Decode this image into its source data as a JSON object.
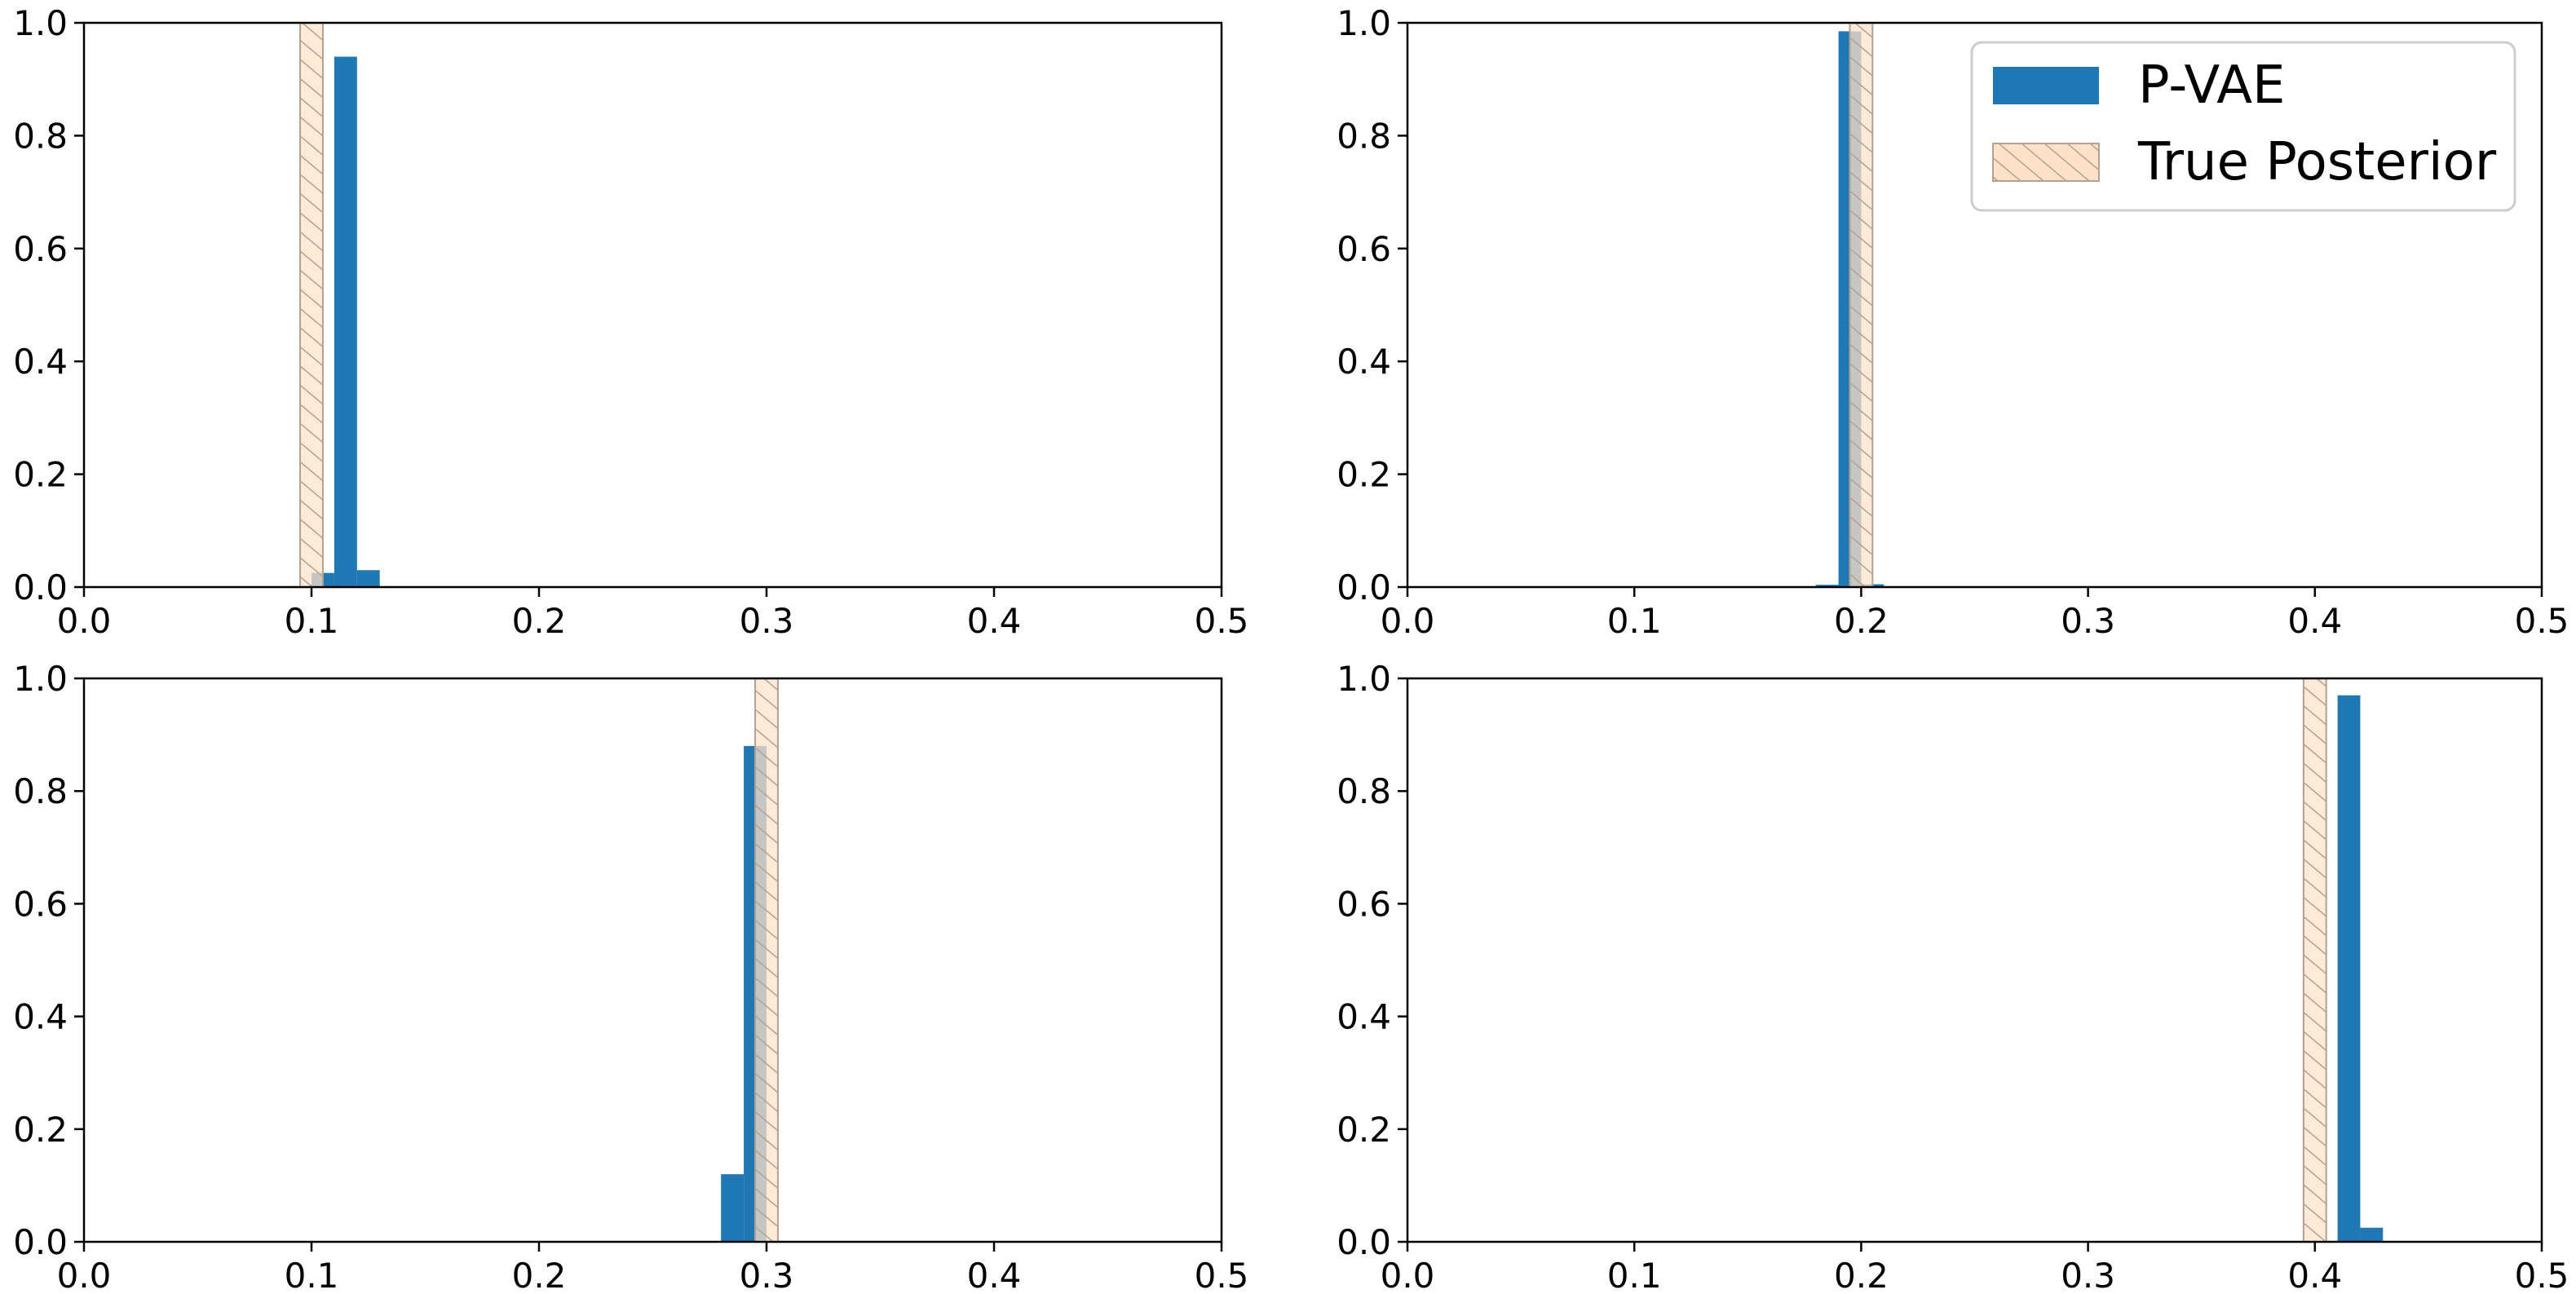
{
  "colors": {
    "pvae": "#1f77b4",
    "true_posterior_fill": "#ffe1c9",
    "true_posterior_edge": "#b4a190",
    "axis": "#000000"
  },
  "legend": {
    "entries": [
      "P-VAE",
      "True Posterior"
    ],
    "placement": "upper-right of top-right panel"
  },
  "chart_data": [
    {
      "type": "bar",
      "panel": "top-left",
      "xlim": [
        0.0,
        0.5
      ],
      "ylim": [
        0.0,
        1.0
      ],
      "xticks": [
        "0.0",
        "0.1",
        "0.2",
        "0.3",
        "0.4",
        "0.5"
      ],
      "yticks": [
        "0.0",
        "0.2",
        "0.4",
        "0.6",
        "0.8",
        "1.0"
      ],
      "grid": false,
      "bin_width": 0.01,
      "series": [
        {
          "name": "P-VAE",
          "bins": [
            [
              0.1,
              0.025
            ],
            [
              0.11,
              0.94
            ],
            [
              0.12,
              0.03
            ]
          ]
        },
        {
          "name": "True Posterior",
          "bins": [
            [
              0.095,
              1.0
            ]
          ]
        }
      ]
    },
    {
      "type": "bar",
      "panel": "top-right",
      "xlim": [
        0.0,
        0.5
      ],
      "ylim": [
        0.0,
        1.0
      ],
      "xticks": [
        "0.0",
        "0.1",
        "0.2",
        "0.3",
        "0.4",
        "0.5"
      ],
      "yticks": [
        "0.0",
        "0.2",
        "0.4",
        "0.6",
        "0.8",
        "1.0"
      ],
      "grid": false,
      "bin_width": 0.01,
      "series": [
        {
          "name": "P-VAE",
          "bins": [
            [
              0.18,
              0.004
            ],
            [
              0.19,
              0.985
            ],
            [
              0.2,
              0.005
            ]
          ]
        },
        {
          "name": "True Posterior",
          "bins": [
            [
              0.195,
              1.0
            ]
          ]
        }
      ]
    },
    {
      "type": "bar",
      "panel": "bottom-left",
      "xlim": [
        0.0,
        0.5
      ],
      "ylim": [
        0.0,
        1.0
      ],
      "xticks": [
        "0.0",
        "0.1",
        "0.2",
        "0.3",
        "0.4",
        "0.5"
      ],
      "yticks": [
        "0.0",
        "0.2",
        "0.4",
        "0.6",
        "0.8",
        "1.0"
      ],
      "grid": false,
      "bin_width": 0.01,
      "series": [
        {
          "name": "P-VAE",
          "bins": [
            [
              0.28,
              0.12
            ],
            [
              0.29,
              0.88
            ]
          ]
        },
        {
          "name": "True Posterior",
          "bins": [
            [
              0.295,
              1.0
            ]
          ]
        }
      ]
    },
    {
      "type": "bar",
      "panel": "bottom-right",
      "xlim": [
        0.0,
        0.5
      ],
      "ylim": [
        0.0,
        1.0
      ],
      "xticks": [
        "0.0",
        "0.1",
        "0.2",
        "0.3",
        "0.4",
        "0.5"
      ],
      "yticks": [
        "0.0",
        "0.2",
        "0.4",
        "0.6",
        "0.8",
        "1.0"
      ],
      "grid": false,
      "bin_width": 0.01,
      "series": [
        {
          "name": "P-VAE",
          "bins": [
            [
              0.41,
              0.97
            ],
            [
              0.42,
              0.025
            ]
          ]
        },
        {
          "name": "True Posterior",
          "bins": [
            [
              0.395,
              1.0
            ]
          ]
        }
      ]
    }
  ]
}
